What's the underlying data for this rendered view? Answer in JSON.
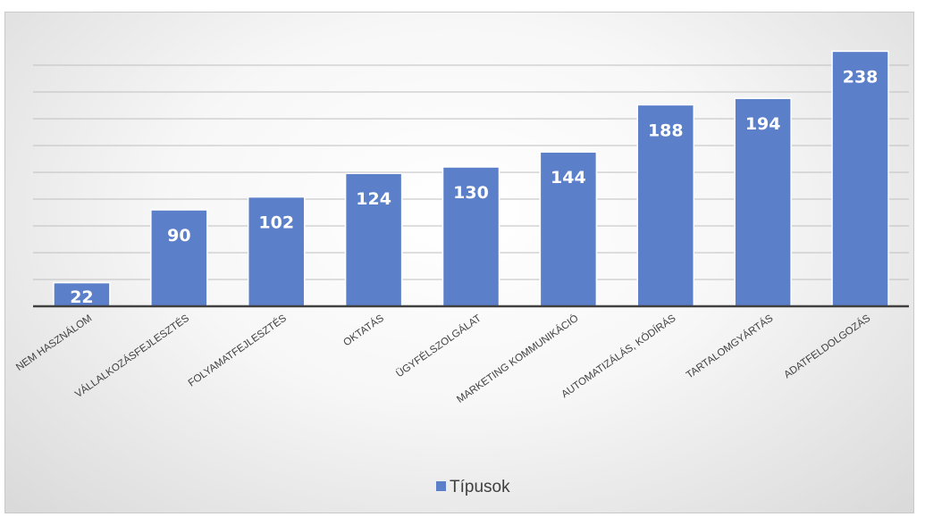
{
  "chart_data": {
    "type": "bar",
    "categories": [
      "NEM HASZNÁLOM",
      "VÁLLALKOZÁSFEJLESZTÉS",
      "FOLYAMATFEJLESZTÉS",
      "OKTATÁS",
      "ÜGYFÉLSZOLGÁLAT",
      "MARKETING KOMMUNIKÁCIÓ",
      "AUTOMATIZÁLÁS, KÓDÍRÁS",
      "TARTALOMGYÁRTÁS",
      "ADATFELDOLGOZÁS"
    ],
    "series": [
      {
        "name": "Típusok",
        "values": [
          22,
          90,
          102,
          124,
          130,
          144,
          188,
          194,
          238
        ]
      }
    ],
    "value_labels": [
      "22",
      "90",
      "102",
      "124",
      "130",
      "144",
      "188",
      "194",
      "238"
    ],
    "title": "",
    "xlabel": "",
    "ylabel": "",
    "ylim": [
      0,
      240
    ],
    "grid": true,
    "legend": "bottom",
    "colors": {
      "bar": "#5B7FC9",
      "bar_edge": "#ffffff",
      "gridline": "#bfbfbf",
      "axis": "#404040",
      "label": "#404040"
    }
  }
}
